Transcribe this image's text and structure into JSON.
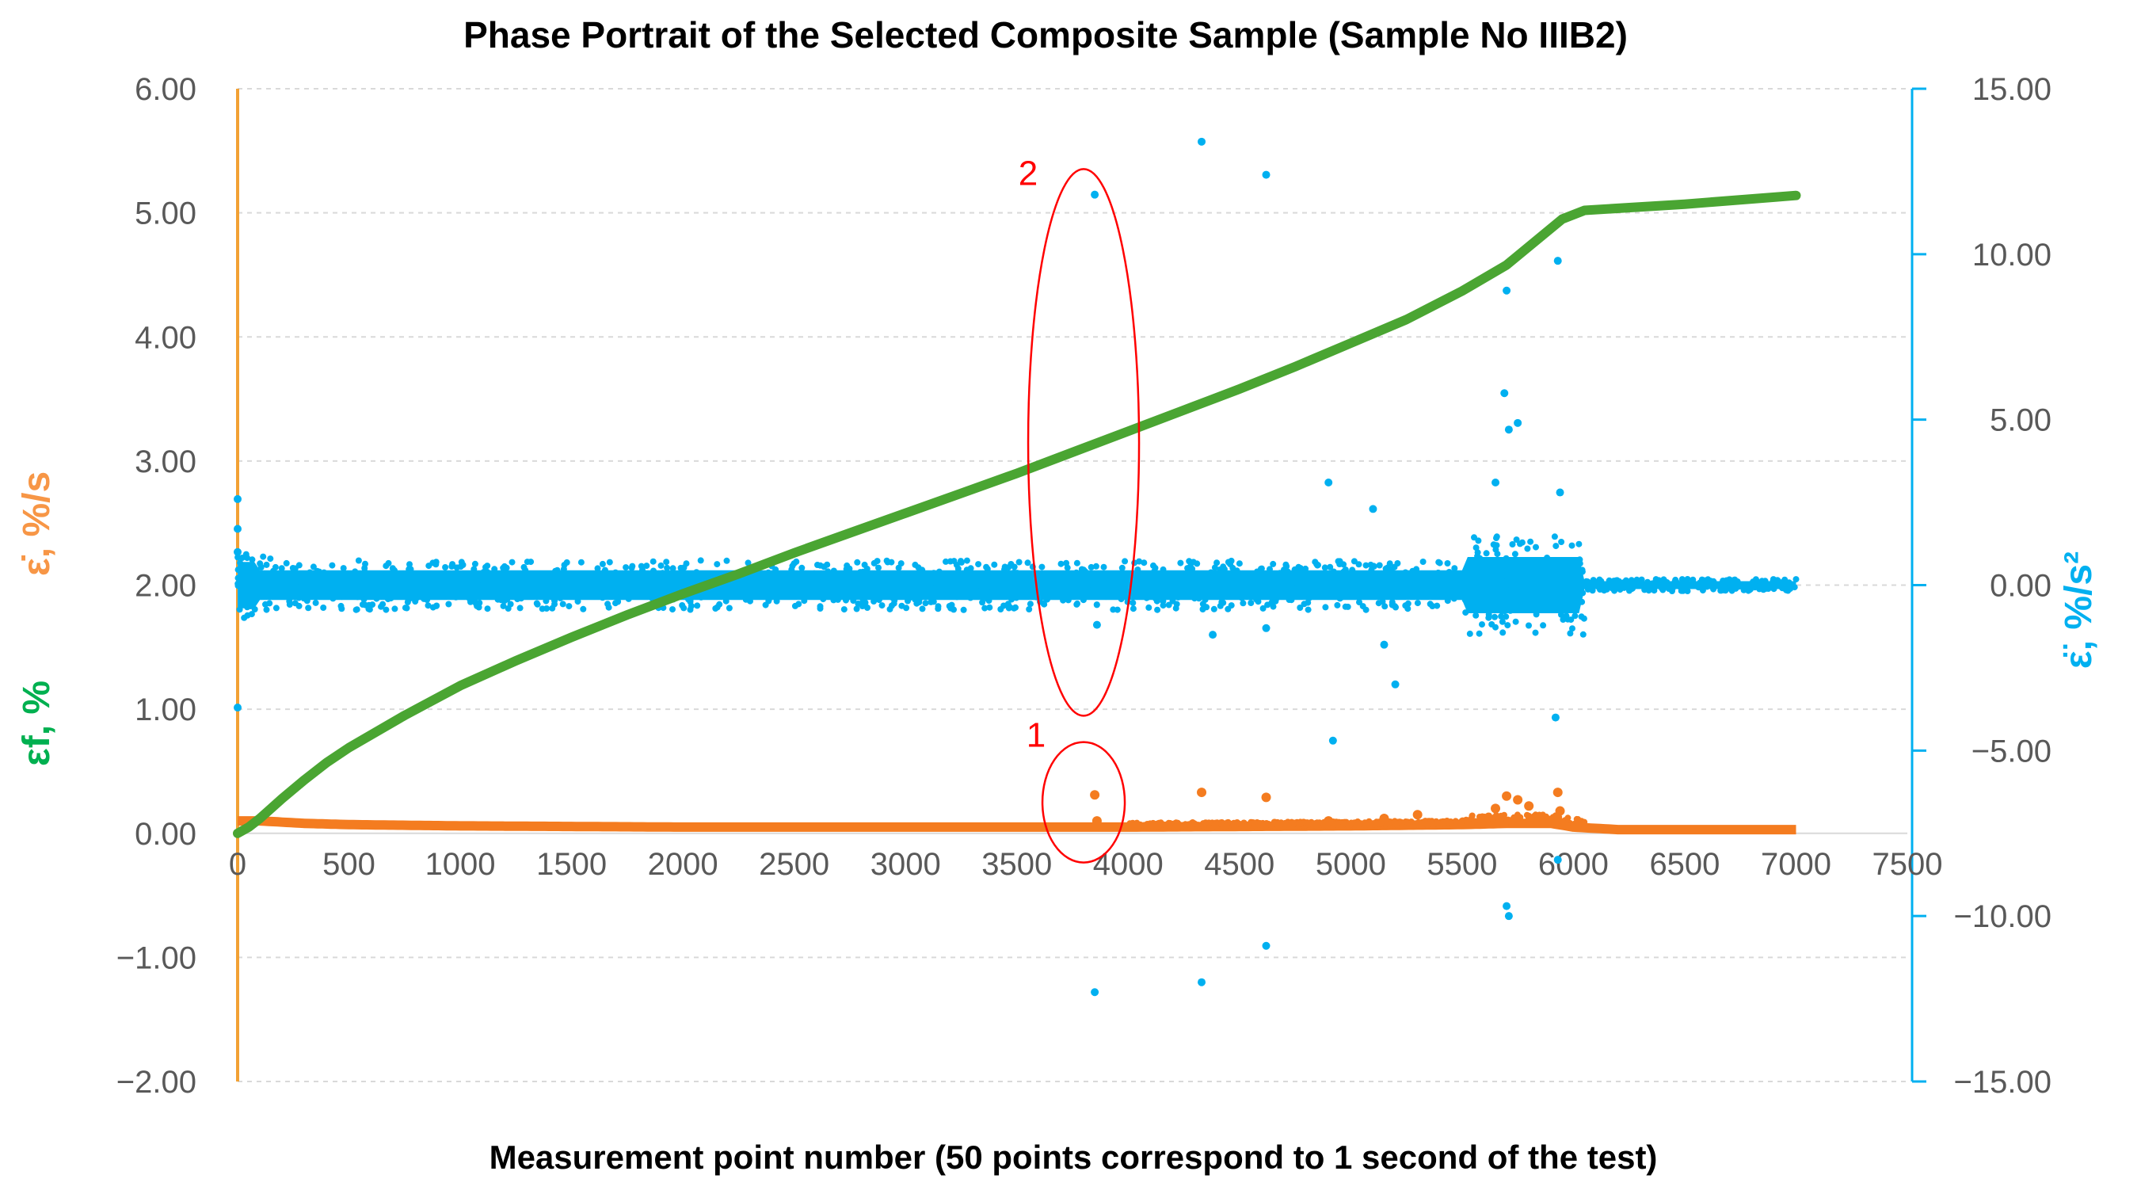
{
  "chart_data": {
    "type": "scatter",
    "title": "Phase Portrait of the Selected Composite Sample (Sample No IIIB2)",
    "xlabel": "Measurement point number (50 points correspond to 1 second of the test)",
    "ylabel_left_part1": "εf, %",
    "ylabel_left_part2": "ε̇, %/s",
    "ylabel_right": "ε̈, %/s²",
    "xlim": [
      0,
      7500
    ],
    "ylim_left": [
      -2,
      6
    ],
    "ylim_right": [
      -15,
      15
    ],
    "x_ticks": [
      "0",
      "500",
      "1000",
      "1500",
      "2000",
      "2500",
      "3000",
      "3500",
      "4000",
      "4500",
      "5000",
      "5500",
      "6000",
      "6500",
      "7000",
      "7500"
    ],
    "y_left_ticks": [
      "−2.00",
      "−1.00",
      "0.00",
      "1.00",
      "2.00",
      "3.00",
      "4.00",
      "5.00",
      "6.00"
    ],
    "y_right_ticks": [
      "−15.00",
      "−10.00",
      "−5.00",
      "0.00",
      "5.00",
      "10.00",
      "15.00"
    ],
    "grid": "horizontal",
    "colors": {
      "strain": "#4aa532",
      "strain_rate": "#f47c20",
      "acceleration": "#00b0f0",
      "left_axis": "#f2a134",
      "right_axis": "#00b0f0",
      "annotation": "#ff0000",
      "label_green": "#00b050",
      "label_orange": "#f79646"
    },
    "series": [
      {
        "axis": "left",
        "x": [
          0,
          50,
          100,
          200,
          300,
          400,
          500,
          750,
          1000,
          1250,
          1500,
          1750,
          2000,
          2250,
          2500,
          2750,
          3000,
          3250,
          3500,
          3750,
          4000,
          4250,
          4500,
          4750,
          5000,
          5250,
          5500,
          5700,
          5950,
          6050,
          6500,
          7000
        ],
        "y": [
          0.0,
          0.05,
          0.12,
          0.28,
          0.43,
          0.57,
          0.69,
          0.95,
          1.19,
          1.39,
          1.58,
          1.76,
          1.93,
          2.09,
          2.26,
          2.42,
          2.58,
          2.74,
          2.9,
          3.07,
          3.24,
          3.41,
          3.58,
          3.76,
          3.95,
          4.14,
          4.37,
          4.58,
          4.95,
          5.02,
          5.07,
          5.14
        ]
      },
      {
        "axis": "left",
        "x": [
          0,
          100,
          300,
          500,
          1000,
          2000,
          3000,
          4000,
          5000,
          5500,
          5700,
          5900,
          6000,
          6200,
          7000
        ],
        "y": [
          0.1,
          0.1,
          0.08,
          0.07,
          0.06,
          0.05,
          0.05,
          0.05,
          0.06,
          0.07,
          0.08,
          0.08,
          0.05,
          0.03,
          0.03
        ],
        "outliers_x": [
          3850,
          3860,
          4330,
          4620,
          4900,
          5150,
          5300,
          5650,
          5700,
          5750,
          5800,
          5930,
          5940
        ],
        "outliers_y": [
          0.31,
          0.1,
          0.33,
          0.29,
          0.1,
          0.12,
          0.15,
          0.2,
          0.3,
          0.27,
          0.22,
          0.33,
          0.18
        ]
      },
      {
        "axis": "right",
        "x": [
          0,
          100,
          500,
          1000,
          2000,
          3000,
          4000,
          5000,
          5500,
          5700,
          5900,
          6000,
          6100,
          7000
        ],
        "y": [
          0,
          0,
          0,
          0,
          0,
          0,
          0,
          0,
          0,
          0,
          0,
          0,
          0,
          0
        ],
        "outliers_x": [
          0,
          0,
          0,
          0,
          3850,
          3860,
          4330,
          4380,
          4620,
          4620,
          4900,
          4920,
          5100,
          5150,
          5200,
          5650,
          5690,
          5700,
          5710,
          5750,
          5700,
          5710,
          5930,
          5940,
          5920,
          5930
        ],
        "outliers_y": [
          2.6,
          1.7,
          -3.7,
          1.0,
          11.8,
          -1.2,
          13.4,
          -1.5,
          12.4,
          -1.3,
          3.1,
          -4.7,
          2.3,
          -1.8,
          -3.0,
          3.1,
          5.8,
          8.9,
          4.7,
          4.9,
          -9.7,
          -10.0,
          9.8,
          2.8,
          -4.0,
          -8.3
        ],
        "far_outliers_x": [
          3850,
          4330,
          4620
        ],
        "far_outliers_y": [
          -12.3,
          -12.0,
          -10.9
        ]
      }
    ],
    "annotations": [
      {
        "label": "1",
        "x": 3800,
        "y_left": 0.25
      },
      {
        "label": "2",
        "x": 3800,
        "y_left": 3.15
      }
    ]
  }
}
